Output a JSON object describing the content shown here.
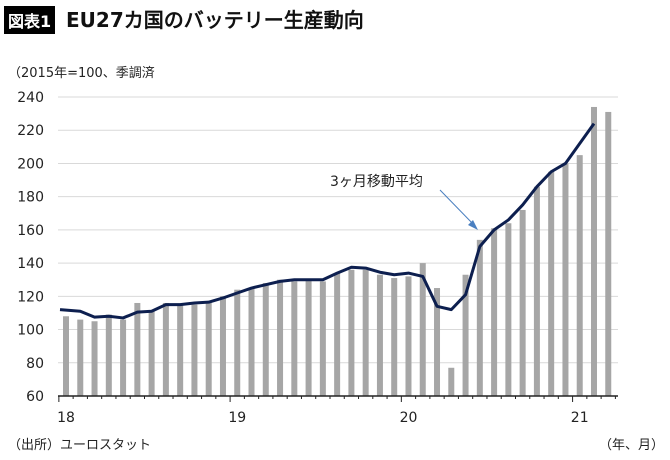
{
  "header": {
    "badge": "図表1",
    "title": "EU27カ国のバッテリー生産動向"
  },
  "unit_note": "（2015年=100、季調済",
  "source": "（出所）ユーロスタット",
  "x_unit": "（年、月）",
  "chart_data": {
    "type": "bar+line",
    "ylim": [
      60,
      240
    ],
    "yticks": [
      60,
      80,
      100,
      120,
      140,
      160,
      180,
      200,
      220,
      240
    ],
    "xtick_labels": [
      "18",
      "19",
      "20",
      "21"
    ],
    "grid": true,
    "bar_color": "#a6a6a6",
    "line_color": "#0d1f4f",
    "start": "2018-01",
    "bars": [
      108,
      106,
      105,
      109,
      106,
      116,
      111,
      116,
      115,
      115,
      117,
      120,
      124,
      125,
      128,
      130,
      129,
      130,
      129,
      134,
      136,
      136,
      133,
      131,
      132,
      140,
      125,
      77,
      133,
      154,
      161,
      164,
      172,
      186,
      195,
      200,
      205,
      234,
      231
    ],
    "line": {
      "name": "3ヶ月移動平均",
      "values": [
        112,
        111,
        107.5,
        108,
        107,
        110.5,
        111,
        115,
        115,
        116,
        116.5,
        119,
        122,
        125,
        127,
        129,
        130,
        130,
        130,
        134,
        137.5,
        137,
        134.5,
        133,
        134,
        132,
        114,
        112,
        121,
        150,
        160,
        166,
        175,
        186,
        195,
        200,
        212,
        224
      ]
    }
  }
}
